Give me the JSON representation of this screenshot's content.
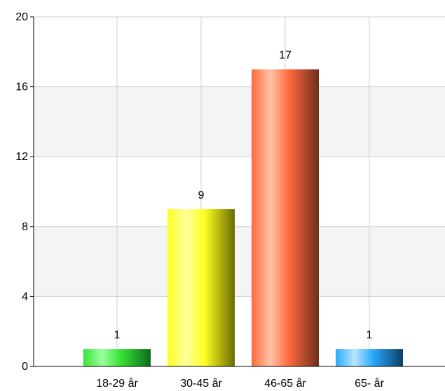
{
  "chart_data": {
    "type": "bar",
    "categories": [
      "18-29 år",
      "30-45 år",
      "46-65 år",
      "65- år"
    ],
    "values": [
      1,
      9,
      17,
      1
    ],
    "yticks": [
      0,
      4,
      8,
      12,
      16,
      20
    ],
    "ylim": [
      0,
      20
    ],
    "grid": true,
    "bar_colors": [
      {
        "light": "#9cff9c",
        "base": "#39e339",
        "dark": "#0c6b1c"
      },
      {
        "light": "#ffff9c",
        "base": "#ffff22",
        "dark": "#6b6b00"
      },
      {
        "light": "#ffc4a8",
        "base": "#ff6a3d",
        "dark": "#6e2e1c"
      },
      {
        "light": "#b8e6ff",
        "base": "#2aa9ff",
        "dark": "#0b3f66"
      }
    ],
    "band_color": "#f4f4f4",
    "grid_color": "#cfcfcf"
  }
}
